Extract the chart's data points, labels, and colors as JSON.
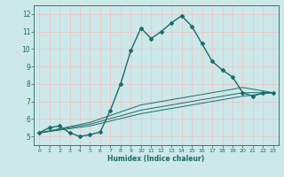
{
  "title": "",
  "xlabel": "Humidex (Indice chaleur)",
  "bg_color": "#cce8e8",
  "line_color": "#1a6b6b",
  "grid_color": "#f0c0c0",
  "xlim": [
    -0.5,
    23.5
  ],
  "ylim": [
    4.5,
    12.5
  ],
  "xticks": [
    0,
    1,
    2,
    3,
    4,
    5,
    6,
    7,
    8,
    9,
    10,
    11,
    12,
    13,
    14,
    15,
    16,
    17,
    18,
    19,
    20,
    21,
    22,
    23
  ],
  "yticks": [
    5,
    6,
    7,
    8,
    9,
    10,
    11,
    12
  ],
  "lines": [
    {
      "x": [
        0,
        1,
        2,
        3,
        4,
        5,
        6,
        7,
        8,
        9,
        10,
        11,
        12,
        13,
        14,
        15,
        16,
        17,
        18,
        19,
        20,
        21,
        22,
        23
      ],
      "y": [
        5.2,
        5.5,
        5.6,
        5.2,
        5.0,
        5.1,
        5.25,
        6.5,
        8.0,
        9.9,
        11.2,
        10.6,
        11.0,
        11.5,
        11.9,
        11.3,
        10.3,
        9.3,
        8.8,
        8.4,
        7.5,
        7.3,
        7.5,
        7.5
      ],
      "marker": "D",
      "markersize": 2.0,
      "linewidth": 1.0
    },
    {
      "x": [
        0,
        5,
        10,
        14,
        20,
        23
      ],
      "y": [
        5.2,
        5.8,
        6.8,
        7.2,
        7.8,
        7.5
      ],
      "marker": null,
      "markersize": 0,
      "linewidth": 0.7
    },
    {
      "x": [
        0,
        5,
        10,
        14,
        20,
        23
      ],
      "y": [
        5.2,
        5.7,
        6.5,
        6.9,
        7.5,
        7.5
      ],
      "marker": null,
      "markersize": 0,
      "linewidth": 0.7
    },
    {
      "x": [
        0,
        5,
        10,
        14,
        20,
        23
      ],
      "y": [
        5.2,
        5.6,
        6.3,
        6.7,
        7.3,
        7.5
      ],
      "marker": null,
      "markersize": 0,
      "linewidth": 0.7
    }
  ]
}
